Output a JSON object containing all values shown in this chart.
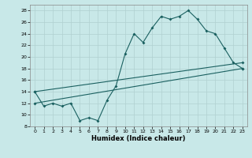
{
  "xlabel": "Humidex (Indice chaleur)",
  "ylabel": "",
  "bg_color": "#c8e8e8",
  "grid_color": "#b0d0d0",
  "line_color": "#1a6060",
  "ylim": [
    8,
    29
  ],
  "xlim": [
    -0.5,
    23.5
  ],
  "yticks": [
    8,
    10,
    12,
    14,
    16,
    18,
    20,
    22,
    24,
    26,
    28
  ],
  "xticks": [
    0,
    1,
    2,
    3,
    4,
    5,
    6,
    7,
    8,
    9,
    10,
    11,
    12,
    13,
    14,
    15,
    16,
    17,
    18,
    19,
    20,
    21,
    22,
    23
  ],
  "line1_x": [
    0,
    1,
    2,
    3,
    4,
    5,
    6,
    7,
    8,
    9,
    10,
    11,
    12,
    13,
    14,
    15,
    16,
    17,
    18,
    19,
    20,
    21,
    22,
    23
  ],
  "line1_y": [
    14,
    11.5,
    12,
    11.5,
    12,
    9,
    9.5,
    9,
    12.5,
    15,
    20.5,
    24,
    22.5,
    25,
    27,
    26.5,
    27,
    28,
    26.5,
    24.5,
    24,
    21.5,
    19,
    18
  ],
  "line2_x": [
    0,
    23
  ],
  "line2_y": [
    12,
    18
  ],
  "line3_x": [
    0,
    23
  ],
  "line3_y": [
    14,
    19
  ]
}
